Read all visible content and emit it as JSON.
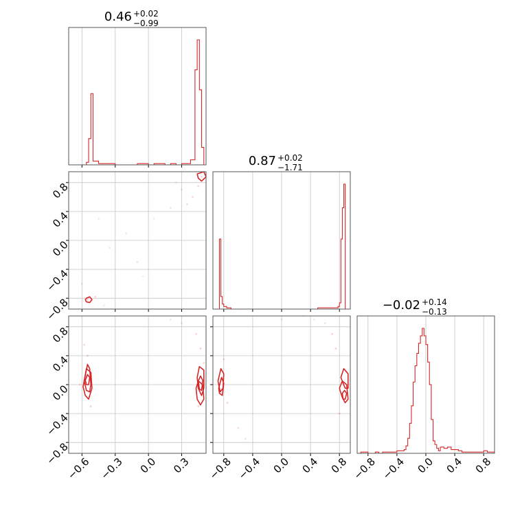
{
  "chart_data": {
    "type": "corner",
    "color": "#d62728",
    "grid": true,
    "titles": [
      {
        "main": "0.46",
        "sup": "+0.02",
        "sub": "−0.99"
      },
      {
        "main": "0.87",
        "sup": "+0.02",
        "sub": "−1.71"
      },
      {
        "main": "−0.02",
        "sup": "+0.14",
        "sub": "−0.13"
      }
    ],
    "axes": {
      "x0": {
        "range": [
          -0.72,
          0.52
        ],
        "ticks": [
          -0.6,
          -0.3,
          0.0,
          0.3
        ],
        "labels": [
          "−0.6",
          "−0.3",
          "0.0",
          "0.3"
        ]
      },
      "x1": {
        "range": [
          -0.95,
          0.95
        ],
        "ticks": [
          -0.8,
          -0.4,
          0.0,
          0.4,
          0.8
        ],
        "labels": [
          "−0.8",
          "−0.4",
          "0.0",
          "0.4",
          "0.8"
        ]
      },
      "x2": {
        "range": [
          -0.95,
          0.95
        ],
        "ticks": [
          -0.8,
          -0.4,
          0.0,
          0.4,
          0.8
        ],
        "labels": [
          "−0.8",
          "−0.4",
          "0.0",
          "0.4",
          "0.8"
        ]
      }
    },
    "hist0": {
      "edges": [
        -0.58,
        -0.56,
        -0.54,
        -0.52,
        -0.5,
        -0.45,
        -0.3,
        -0.1,
        0.0,
        0.05,
        0.1,
        0.15,
        0.2,
        0.25,
        0.3,
        0.34,
        0.38,
        0.42,
        0.44,
        0.46,
        0.48,
        0.5,
        0.52
      ],
      "counts": [
        0,
        2,
        21,
        57,
        3,
        1,
        0,
        1,
        0,
        1,
        1,
        0,
        1,
        0,
        1,
        1,
        4,
        76,
        100,
        60,
        14,
        0
      ],
      "ymax": 100
    },
    "hist1": {
      "edges": [
        -0.95,
        -0.88,
        -0.86,
        -0.84,
        -0.82,
        -0.8,
        -0.76,
        -0.7,
        -0.6,
        0.0,
        0.5,
        0.7,
        0.78,
        0.8,
        0.82,
        0.84,
        0.86,
        0.88,
        0.95
      ],
      "counts": [
        0,
        0,
        56,
        10,
        4,
        2,
        1,
        0,
        0,
        0,
        1,
        1,
        2,
        5,
        56,
        81,
        100,
        0
      ],
      "ymax": 100
    },
    "hist2": {
      "edges": [
        -0.95,
        -0.9,
        -0.85,
        -0.8,
        -0.75,
        -0.7,
        -0.65,
        -0.6,
        -0.55,
        -0.5,
        -0.45,
        -0.4,
        -0.35,
        -0.3,
        -0.275,
        -0.25,
        -0.225,
        -0.2,
        -0.175,
        -0.15,
        -0.125,
        -0.1,
        -0.075,
        -0.05,
        -0.025,
        0.0,
        0.025,
        0.05,
        0.075,
        0.1,
        0.125,
        0.15,
        0.175,
        0.2,
        0.25,
        0.3,
        0.35,
        0.4,
        0.45,
        0.5,
        0.55,
        0.6,
        0.65,
        0.7,
        0.75,
        0.8,
        0.85,
        0.9,
        0.95
      ],
      "counts": [
        0,
        1,
        1,
        0,
        0,
        1,
        0,
        1,
        1,
        1,
        1,
        2,
        2,
        3,
        6,
        12,
        24,
        38,
        57,
        70,
        80,
        88,
        94,
        100,
        94,
        87,
        73,
        55,
        27,
        10,
        7,
        4,
        2,
        5,
        4,
        5,
        3,
        3,
        2,
        1,
        1,
        1,
        1,
        1,
        1,
        2,
        1,
        1
      ],
      "ymax": 100
    },
    "scatter10": [
      [
        -0.55,
        -0.82,
        0.1
      ],
      [
        -0.48,
        -0.78,
        0.09
      ],
      [
        0.48,
        0.88,
        0.1
      ],
      [
        0.5,
        0.85,
        0.09
      ],
      [
        0.45,
        0.75,
        0.08
      ],
      [
        0.4,
        0.6,
        0.08
      ],
      [
        0.35,
        0.5,
        0.08
      ],
      [
        0.3,
        0.7,
        0.07
      ],
      [
        -0.35,
        -0.1,
        0.06
      ],
      [
        -0.2,
        0.1,
        0.06
      ],
      [
        -0.1,
        -0.3,
        0.06
      ],
      [
        0.05,
        0.3,
        0.05
      ],
      [
        -0.45,
        0.3,
        0.05
      ],
      [
        0.2,
        0.45,
        0.06
      ],
      [
        -0.6,
        -0.6,
        0.06
      ],
      [
        -0.4,
        -0.9,
        0.05
      ],
      [
        -0.05,
        -0.5,
        0.04
      ],
      [
        0.25,
        0.8,
        0.05
      ]
    ],
    "scatter20": [
      [
        -0.55,
        0.4,
        0.1
      ],
      [
        -0.52,
        -0.3,
        0.1
      ],
      [
        -0.58,
        0.55,
        0.08
      ],
      [
        0.47,
        0.5,
        0.1
      ],
      [
        0.45,
        -0.3,
        0.09
      ],
      [
        0.43,
        0.7,
        0.08
      ],
      [
        0.5,
        0.3,
        0.09
      ],
      [
        0.3,
        0.85,
        0.06
      ],
      [
        -0.2,
        -0.95,
        0.06
      ],
      [
        0.1,
        -0.95,
        0.05
      ],
      [
        -0.1,
        -0.95,
        0.05
      ],
      [
        0.2,
        0.9,
        0.05
      ],
      [
        -0.62,
        0.0,
        0.08
      ]
    ],
    "scatter21": [
      [
        -0.8,
        0.35,
        0.1
      ],
      [
        -0.75,
        -0.25,
        0.1
      ],
      [
        -0.6,
        -0.6,
        0.08
      ],
      [
        -0.5,
        -0.75,
        0.07
      ],
      [
        0.75,
        0.5,
        0.1
      ],
      [
        0.7,
        0.7,
        0.09
      ],
      [
        0.6,
        0.85,
        0.07
      ],
      [
        0.8,
        -0.4,
        0.09
      ],
      [
        0.3,
        0.95,
        0.05
      ],
      [
        -0.2,
        -0.95,
        0.05
      ],
      [
        0.0,
        0.9,
        0.05
      ],
      [
        0.45,
        0.9,
        0.06
      ]
    ],
    "contours10": [
      [
        [
          -0.56,
          -0.8
        ],
        [
          -0.53,
          -0.78
        ],
        [
          -0.51,
          -0.82
        ],
        [
          -0.53,
          -0.86
        ],
        [
          -0.56,
          -0.85
        ],
        [
          -0.57,
          -0.82
        ]
      ],
      [
        [
          0.44,
          0.92
        ],
        [
          0.5,
          0.95
        ],
        [
          0.52,
          0.88
        ],
        [
          0.48,
          0.82
        ],
        [
          0.45,
          0.86
        ]
      ]
    ],
    "contours20": [
      [
        [
          -0.58,
          0.05
        ],
        [
          -0.55,
          0.28
        ],
        [
          -0.53,
          0.22
        ],
        [
          -0.52,
          0.0
        ],
        [
          -0.53,
          -0.1
        ],
        [
          -0.56,
          -0.08
        ]
      ],
      [
        [
          -0.59,
          -0.03
        ],
        [
          -0.56,
          0.22
        ],
        [
          -0.52,
          0.17
        ],
        [
          -0.51,
          -0.05
        ],
        [
          -0.54,
          -0.2
        ],
        [
          -0.57,
          -0.15
        ]
      ],
      [
        [
          -0.57,
          0.06
        ],
        [
          -0.55,
          0.14
        ],
        [
          -0.53,
          0.1
        ],
        [
          -0.54,
          0.0
        ],
        [
          -0.56,
          0.0
        ]
      ],
      [
        [
          0.44,
          0.1
        ],
        [
          0.46,
          0.25
        ],
        [
          0.5,
          0.2
        ],
        [
          0.5,
          -0.05
        ],
        [
          0.48,
          -0.15
        ],
        [
          0.45,
          -0.05
        ]
      ],
      [
        [
          0.43,
          -0.05
        ],
        [
          0.45,
          0.05
        ],
        [
          0.49,
          0.0
        ],
        [
          0.5,
          -0.2
        ],
        [
          0.47,
          -0.28
        ],
        [
          0.44,
          -0.2
        ]
      ],
      [
        [
          0.45,
          0.05
        ],
        [
          0.47,
          0.12
        ],
        [
          0.49,
          0.06
        ],
        [
          0.48,
          -0.08
        ],
        [
          0.46,
          -0.06
        ]
      ]
    ],
    "contours21": [
      [
        [
          -0.88,
          0.05
        ],
        [
          -0.84,
          0.22
        ],
        [
          -0.8,
          0.15
        ],
        [
          -0.81,
          -0.05
        ],
        [
          -0.85,
          -0.1
        ]
      ],
      [
        [
          -0.87,
          -0.05
        ],
        [
          -0.83,
          0.1
        ],
        [
          -0.8,
          0.02
        ],
        [
          -0.82,
          -0.15
        ],
        [
          -0.86,
          -0.12
        ]
      ],
      [
        [
          0.82,
          0.1
        ],
        [
          0.86,
          0.22
        ],
        [
          0.92,
          0.15
        ],
        [
          0.92,
          -0.05
        ],
        [
          0.88,
          -0.05
        ],
        [
          0.85,
          0.02
        ]
      ],
      [
        [
          0.8,
          -0.05
        ],
        [
          0.84,
          0.05
        ],
        [
          0.9,
          0.0
        ],
        [
          0.92,
          -0.2
        ],
        [
          0.88,
          -0.25
        ],
        [
          0.84,
          -0.18
        ]
      ],
      [
        [
          0.84,
          -0.12
        ],
        [
          0.87,
          -0.08
        ],
        [
          0.9,
          -0.12
        ],
        [
          0.88,
          -0.2
        ],
        [
          0.85,
          -0.2
        ]
      ]
    ]
  }
}
